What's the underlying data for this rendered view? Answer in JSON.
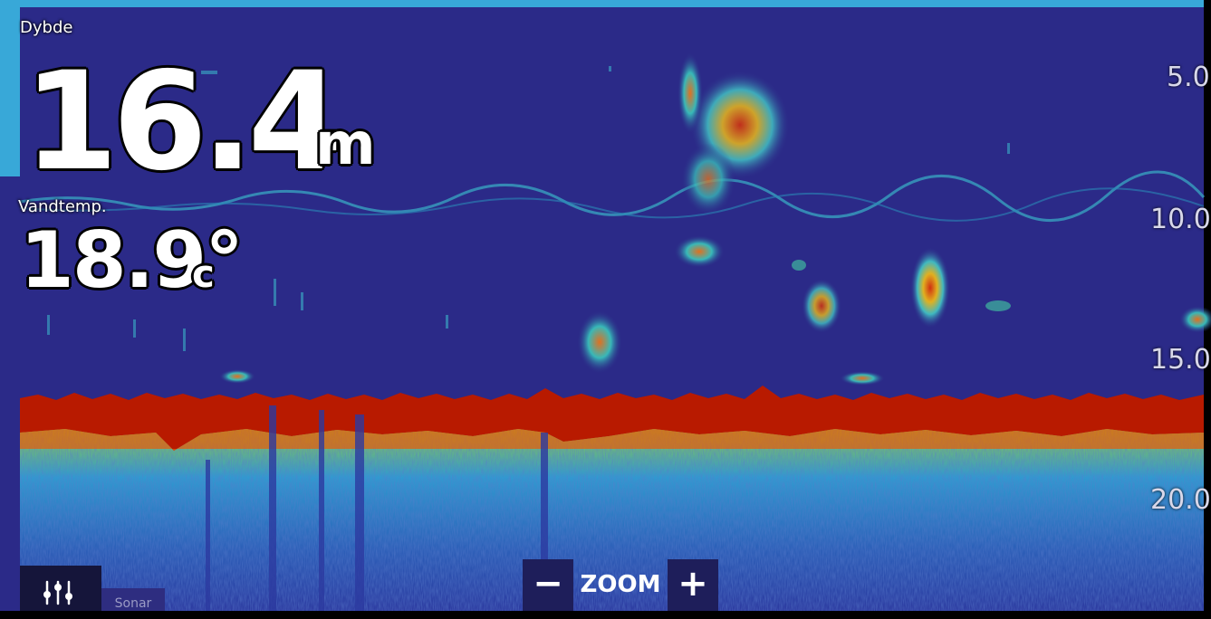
{
  "depth": {
    "label": "Dybde",
    "value": "16.4",
    "unit": "m"
  },
  "water_temp": {
    "label": "Vandtemp.",
    "value": "18.9°",
    "unit": "c"
  },
  "depth_scale": [
    "5.0",
    "10.0",
    "15.0",
    "20.0"
  ],
  "zoom": {
    "minus_label": "−",
    "label": "ZOOM",
    "plus_label": "+"
  },
  "tab": {
    "label": "Sonar"
  },
  "colors": {
    "background": "#2b2a88",
    "accent": "#38a8d8",
    "bottom_return": "#b81a00"
  }
}
